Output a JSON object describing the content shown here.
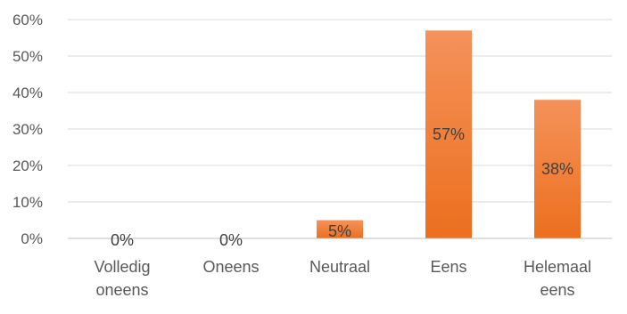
{
  "chart_data": {
    "type": "bar",
    "categories": [
      [
        "Volledig",
        "oneens"
      ],
      [
        "Oneens"
      ],
      [
        "Neutraal"
      ],
      [
        "Eens"
      ],
      [
        "Helemaal",
        "eens"
      ]
    ],
    "values": [
      0,
      0,
      5,
      57,
      38
    ],
    "data_labels": [
      "0%",
      "0%",
      "5%",
      "57%",
      "38%"
    ],
    "yticks": [
      "0%",
      "10%",
      "20%",
      "30%",
      "40%",
      "50%",
      "60%"
    ],
    "ylim": [
      0,
      60
    ],
    "grid": true,
    "legend": "none",
    "bar_color_top": "#f4925a",
    "bar_color_bottom": "#ec6f1e"
  }
}
